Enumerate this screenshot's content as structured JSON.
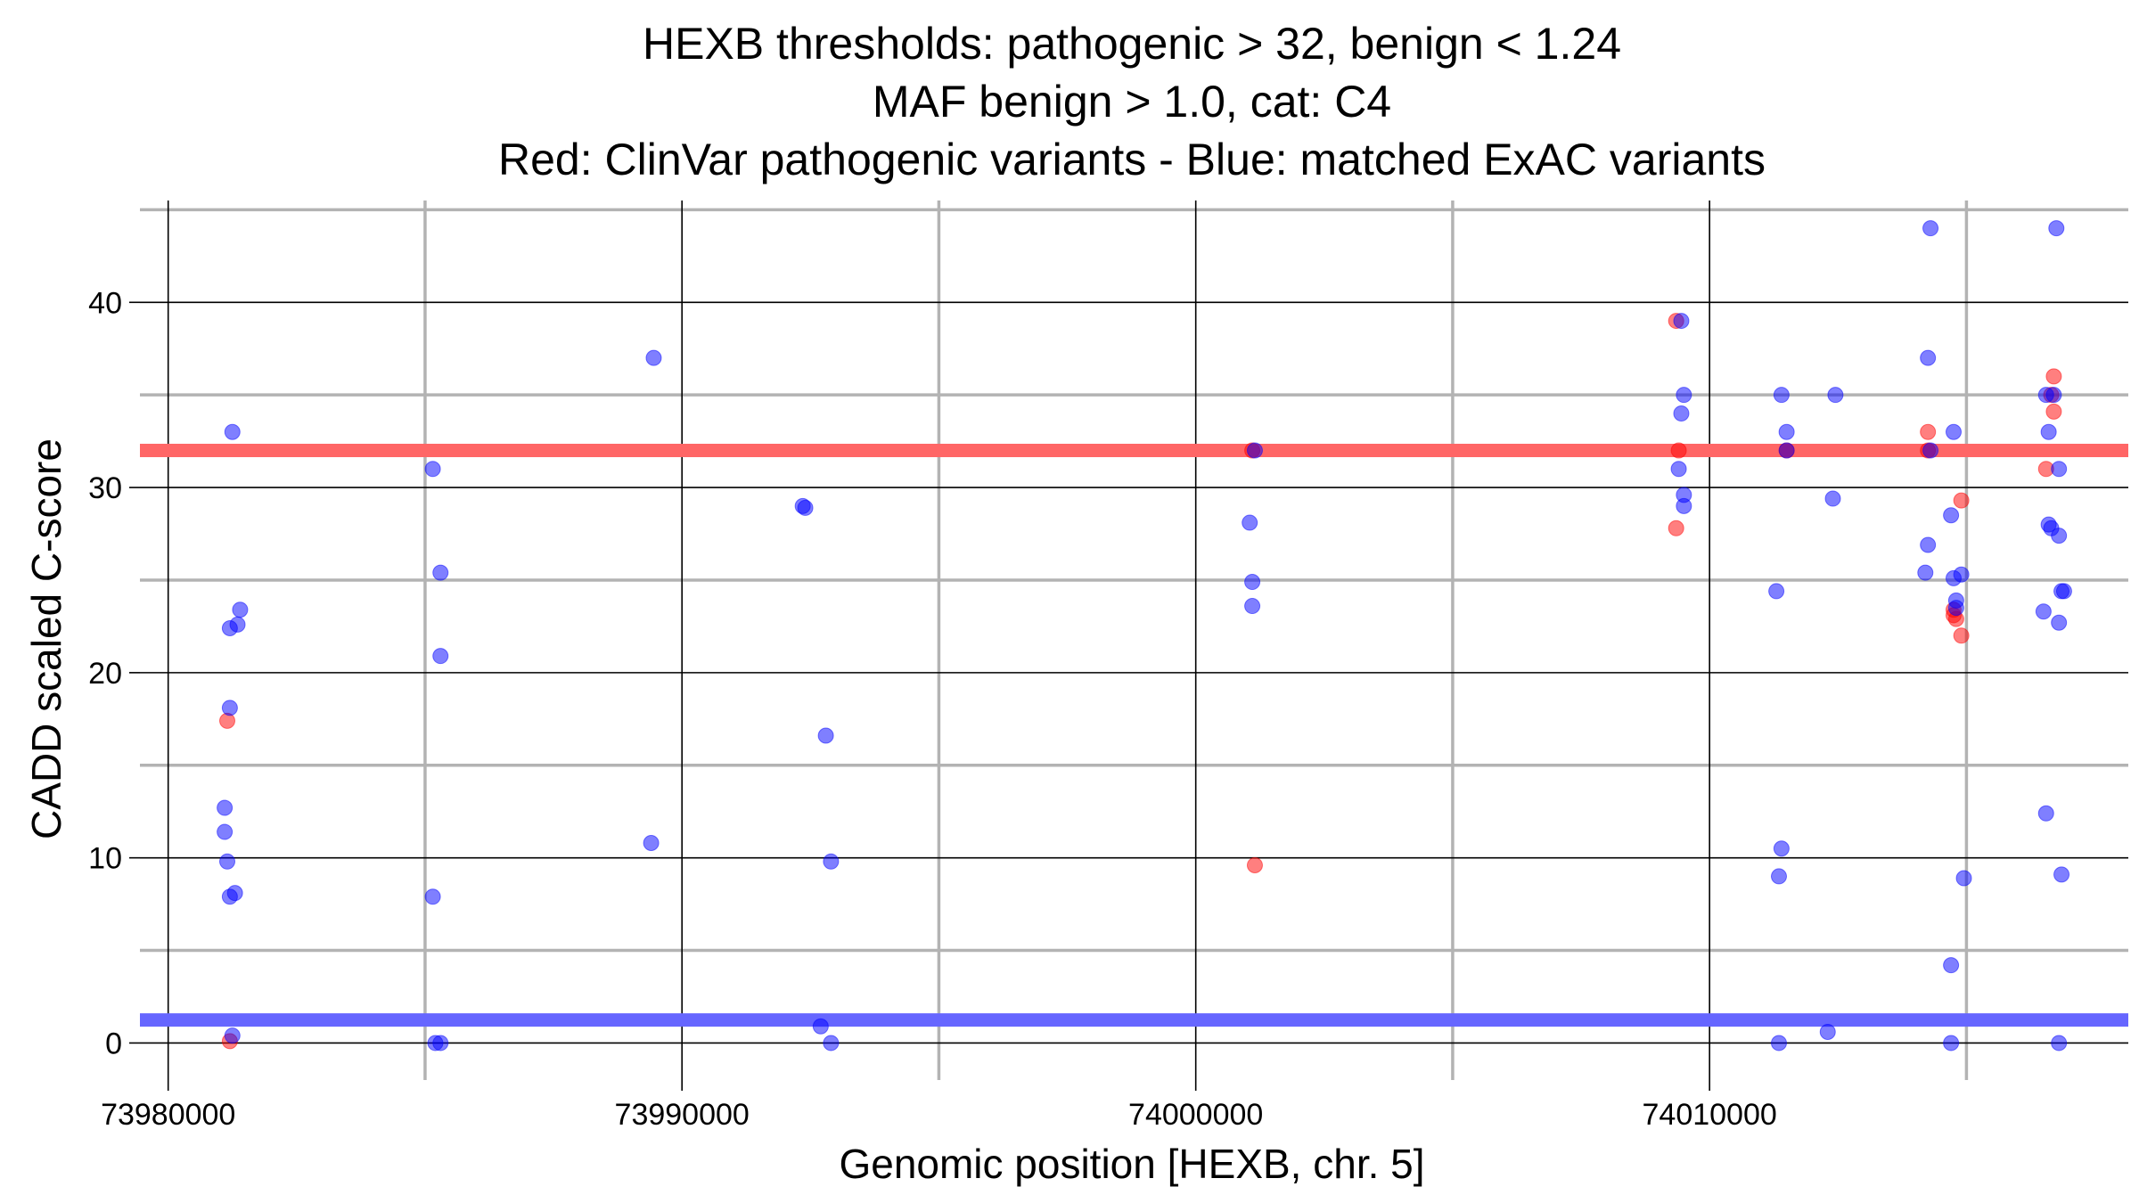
{
  "chart_data": {
    "type": "scatter",
    "title_lines": [
      "HEXB thresholds: pathogenic > 32, benign < 1.24",
      "MAF benign > 1.0, cat: C4",
      "Red: ClinVar pathogenic variants - Blue: matched ExAC variants"
    ],
    "xlabel": "Genomic position [HEXB, chr. 5]",
    "ylabel": "CADD scaled C-score",
    "xlim": [
      73979450,
      74018150
    ],
    "ylim": [
      -2,
      45.5
    ],
    "x_major_ticks": [
      73980000,
      73990000,
      74000000,
      74010000
    ],
    "x_tick_labels": [
      "73980000",
      "73990000",
      "74000000",
      "74010000"
    ],
    "x_minor_gridlines": [
      73985000,
      73995000,
      74005000,
      74015000
    ],
    "y_major_ticks": [
      0,
      10,
      20,
      30,
      40
    ],
    "y_tick_labels": [
      "0",
      "10",
      "20",
      "30",
      "40"
    ],
    "y_minor_gridlines": [
      5,
      15,
      25,
      35,
      45
    ],
    "grid": true,
    "thresholds": [
      {
        "value": 32,
        "color": "#ff6666"
      },
      {
        "value": 1.24,
        "color": "#6666ff"
      }
    ],
    "series": [
      {
        "color": "#ff0000",
        "points": [
          [
            73981150,
            17.4
          ],
          [
            73981200,
            0.1
          ],
          [
            74001100,
            32
          ],
          [
            74001150,
            9.6
          ],
          [
            74009350,
            27.8
          ],
          [
            74009350,
            39
          ],
          [
            74009400,
            32
          ],
          [
            74011500,
            32
          ],
          [
            74014250,
            33
          ],
          [
            74014250,
            32
          ],
          [
            74014750,
            23.4
          ],
          [
            74014750,
            23.1
          ],
          [
            74014800,
            22.9
          ],
          [
            74014900,
            29.3
          ],
          [
            74014900,
            22
          ],
          [
            74016550,
            31
          ],
          [
            74016650,
            35
          ],
          [
            74016700,
            36
          ],
          [
            74016700,
            34.1
          ]
        ]
      },
      {
        "color": "#0000ff",
        "points": [
          [
            73981100,
            12.7
          ],
          [
            73981100,
            11.4
          ],
          [
            73981150,
            9.8
          ],
          [
            73981200,
            7.9
          ],
          [
            73981200,
            22.4
          ],
          [
            73981200,
            18.1
          ],
          [
            73981250,
            0.4
          ],
          [
            73981250,
            33
          ],
          [
            73981300,
            8.1
          ],
          [
            73981350,
            22.6
          ],
          [
            73981400,
            23.4
          ],
          [
            73985150,
            7.9
          ],
          [
            73985150,
            31
          ],
          [
            73985200,
            0
          ],
          [
            73985300,
            0
          ],
          [
            73985300,
            20.9
          ],
          [
            73985300,
            25.4
          ],
          [
            73989400,
            10.8
          ],
          [
            73989450,
            37
          ],
          [
            73992350,
            29
          ],
          [
            73992400,
            28.9
          ],
          [
            73992800,
            16.6
          ],
          [
            73992900,
            9.8
          ],
          [
            73992700,
            0.9
          ],
          [
            73992900,
            0
          ],
          [
            74001050,
            28.1
          ],
          [
            74001100,
            24.9
          ],
          [
            74001100,
            23.6
          ],
          [
            74001150,
            32
          ],
          [
            74009400,
            31
          ],
          [
            74009450,
            34
          ],
          [
            74009450,
            39
          ],
          [
            74009500,
            35
          ],
          [
            74009500,
            29.6
          ],
          [
            74009500,
            29
          ],
          [
            74011300,
            24.4
          ],
          [
            74011350,
            9
          ],
          [
            74011350,
            0
          ],
          [
            74011400,
            10.5
          ],
          [
            74011400,
            35
          ],
          [
            74011500,
            33
          ],
          [
            74011500,
            32
          ],
          [
            74012300,
            0.6
          ],
          [
            74012400,
            29.4
          ],
          [
            74012450,
            35
          ],
          [
            74014200,
            25.4
          ],
          [
            74014250,
            26.9
          ],
          [
            74014250,
            37
          ],
          [
            74014300,
            44
          ],
          [
            74014300,
            32
          ],
          [
            74014700,
            4.2
          ],
          [
            74014700,
            0
          ],
          [
            74014700,
            28.5
          ],
          [
            74014750,
            25.1
          ],
          [
            74014750,
            33
          ],
          [
            74014800,
            23.9
          ],
          [
            74014800,
            23.5
          ],
          [
            74014900,
            25.3
          ],
          [
            74014950,
            8.9
          ],
          [
            74016500,
            23.3
          ],
          [
            74016550,
            12.4
          ],
          [
            74016550,
            35
          ],
          [
            74016600,
            33
          ],
          [
            74016600,
            28
          ],
          [
            74016650,
            27.8
          ],
          [
            74016700,
            35
          ],
          [
            74016750,
            44
          ],
          [
            74016800,
            31
          ],
          [
            74016800,
            27.4
          ],
          [
            74016800,
            22.7
          ],
          [
            74016800,
            0
          ],
          [
            74016850,
            24.4
          ],
          [
            74016850,
            9.1
          ],
          [
            74016900,
            24.4
          ]
        ]
      }
    ]
  }
}
